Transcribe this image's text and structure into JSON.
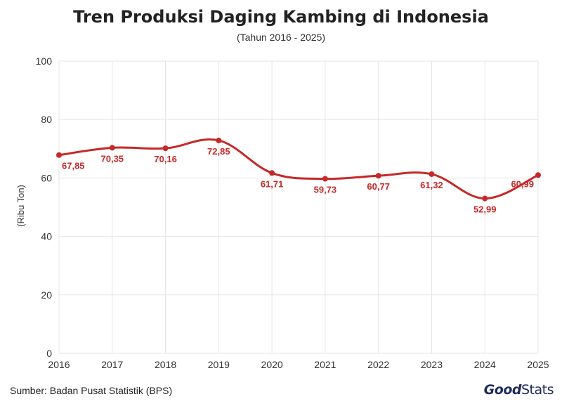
{
  "chart_data": {
    "type": "line",
    "title": "Tren Produksi Daging Kambing di Indonesia",
    "subtitle": "(Tahun 2016 - 2025)",
    "ylabel": "(Ribu Ton)",
    "xlabel": "",
    "x": [
      "2016",
      "2017",
      "2018",
      "2019",
      "2020",
      "2021",
      "2022",
      "2023",
      "2024",
      "2025"
    ],
    "series": [
      {
        "values": [
          67.85,
          70.35,
          70.16,
          72.85,
          61.71,
          59.73,
          60.77,
          61.32,
          52.99,
          60.99
        ],
        "labels": [
          "67,85",
          "70,35",
          "70,16",
          "72,85",
          "61,71",
          "59,73",
          "60,77",
          "61,32",
          "52,99",
          "60,99"
        ],
        "color": "#c62828"
      }
    ],
    "ylim": [
      0,
      100
    ],
    "yticks": [
      "0",
      "20",
      "40",
      "60",
      "80",
      "100"
    ],
    "grid": true
  },
  "footer": {
    "source": "Sumber: Badan Pusat Statistik (BPS)",
    "logo_good": "Good",
    "logo_stats": "Stats"
  },
  "colors": {
    "line": "#c62828",
    "grid": "#e6e6e6",
    "logo": "#1f2a5c"
  }
}
